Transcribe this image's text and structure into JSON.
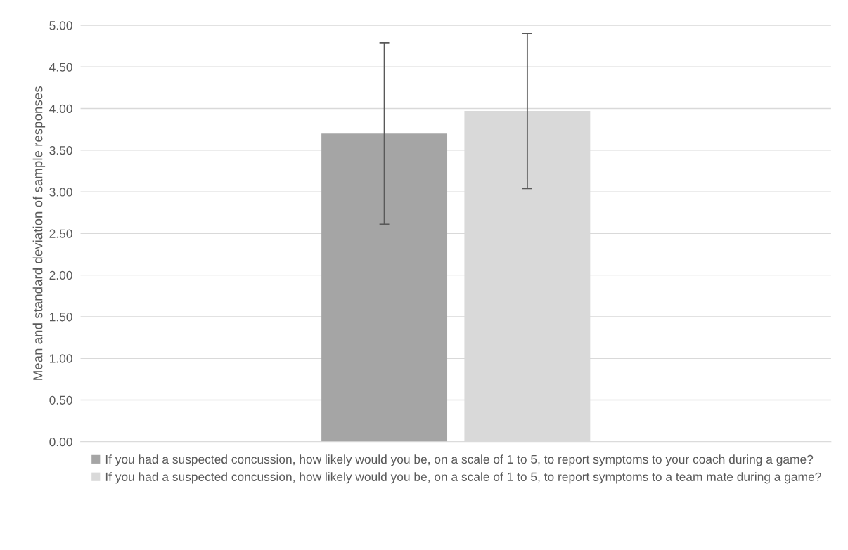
{
  "chart_data": {
    "type": "bar",
    "ylabel": "Mean and standard deviation of sample responses",
    "categories": [
      null
    ],
    "series": [
      {
        "name": "If you had a suspected concussion, how likely would you be, on a scale of 1 to 5, to report symptoms to your coach during a game?",
        "color": "#a5a5a5",
        "values": [
          3.7
        ],
        "errors": [
          1.09
        ]
      },
      {
        "name": "If you had a suspected concussion, how likely would you be, on a scale of 1 to 5, to report symptoms to a team mate during a game?",
        "color": "#d9d9d9",
        "values": [
          3.97
        ],
        "errors": [
          0.93
        ]
      }
    ],
    "ylim": [
      0,
      5
    ],
    "yticks": [
      {
        "value": 0,
        "label": "0.00"
      },
      {
        "value": 0.5,
        "label": "0.50"
      },
      {
        "value": 1,
        "label": "1.00"
      },
      {
        "value": 1.5,
        "label": "1.50"
      },
      {
        "value": 2,
        "label": "2.00"
      },
      {
        "value": 2.5,
        "label": "2.50"
      },
      {
        "value": 3,
        "label": "3.00"
      },
      {
        "value": 3.5,
        "label": "3.50"
      },
      {
        "value": 4,
        "label": "4.00"
      },
      {
        "value": 4.5,
        "label": "4.50"
      },
      {
        "value": 5,
        "label": "5.00"
      }
    ],
    "grid": "y",
    "legend": "bottom"
  }
}
